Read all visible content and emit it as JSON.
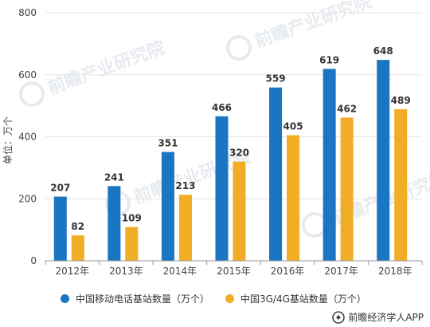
{
  "chart_data": {
    "type": "bar",
    "categories": [
      "2012年",
      "2013年",
      "2014年",
      "2015年",
      "2016年",
      "2017年",
      "2018年"
    ],
    "series": [
      {
        "name": "中国移动电话基站数量（万个）",
        "values": [
          207,
          241,
          351,
          466,
          559,
          619,
          648
        ],
        "color": "#1a75c3"
      },
      {
        "name": "中国3G/4G基站数量（万个）",
        "values": [
          82,
          109,
          213,
          320,
          405,
          462,
          489
        ],
        "color": "#f0ad25"
      }
    ],
    "ylabel": "单位：万个",
    "ylim": [
      0,
      800
    ],
    "yticks": [
      0,
      200,
      400,
      600,
      800
    ],
    "grid": true,
    "legend_position": "bottom"
  },
  "source": "前瞻经济学人APP",
  "watermark": "前瞻产业研究院"
}
